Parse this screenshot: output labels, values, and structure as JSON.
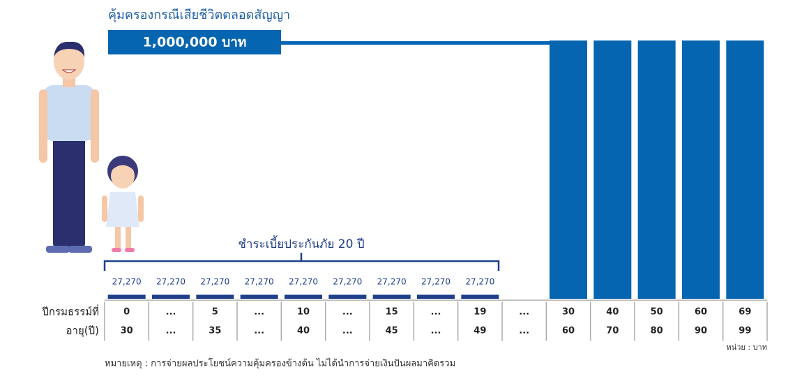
{
  "coverage": {
    "title": "คุ้มครองกรณีเสียชีวิตตลอดสัญญา",
    "amount": "1,000,000 บาท"
  },
  "payment": {
    "label": "ชำระเบี้ยประกันภัย 20 ปี",
    "premiums": [
      "27,270",
      "27,270",
      "27,270",
      "27,270",
      "27,270",
      "27,270",
      "27,270",
      "27,270",
      "27,270"
    ]
  },
  "table": {
    "row_labels": [
      "ปีกรมธรรม์ที่",
      "อายุ(ปี)"
    ],
    "policy_years": [
      "0",
      "...",
      "5",
      "...",
      "10",
      "...",
      "15",
      "...",
      "19",
      "...",
      "30",
      "40",
      "50",
      "60",
      "69"
    ],
    "ages": [
      "30",
      "...",
      "35",
      "...",
      "40",
      "...",
      "45",
      "...",
      "49",
      "...",
      "60",
      "70",
      "80",
      "90",
      "99"
    ]
  },
  "unit": "หน่วย : บาท",
  "note": "หมายเหตุ : การจ่ายผลประโยชน์ความคุ้มครองข้างต้น ไม่ได้นำการจ่ายเงินปันผลมาคิดรวม"
}
